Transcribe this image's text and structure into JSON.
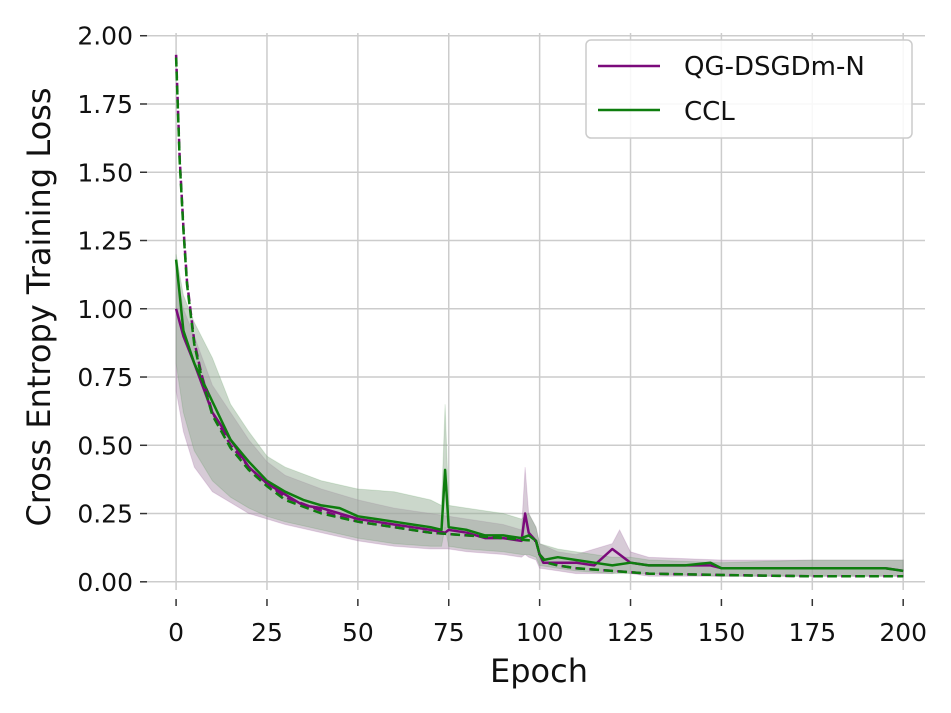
{
  "chart_data": {
    "type": "line",
    "xlabel": "Epoch",
    "ylabel": "Cross Entropy Training Loss",
    "xlim": [
      -8,
      206
    ],
    "ylim": [
      -0.03,
      2.01
    ],
    "xticks": [
      0,
      25,
      50,
      75,
      100,
      125,
      150,
      175,
      200
    ],
    "yticks": [
      0.0,
      0.25,
      0.5,
      0.75,
      1.0,
      1.25,
      1.5,
      1.75,
      2.0
    ],
    "xtick_labels": [
      "0",
      "25",
      "50",
      "75",
      "100",
      "125",
      "150",
      "175",
      "200"
    ],
    "ytick_labels": [
      "0.00",
      "0.25",
      "0.50",
      "0.75",
      "1.00",
      "1.25",
      "1.50",
      "1.75",
      "2.00"
    ],
    "grid": true,
    "legend_position": "top-right",
    "legend": [
      "QG-DSGDm-N",
      "CCL"
    ],
    "colors": {
      "QG-DSGDm-N": "#7b0a7b",
      "CCL": "#0e7d0e",
      "band_overlap": "#bdbdbd",
      "grid": "#cccccc"
    },
    "series": [
      {
        "name": "QG-DSGDm-N",
        "style": "solid",
        "x": [
          0,
          2,
          5,
          10,
          15,
          20,
          25,
          30,
          35,
          40,
          45,
          50,
          55,
          60,
          65,
          70,
          74,
          75,
          80,
          85,
          90,
          95,
          96,
          97,
          99,
          100,
          101,
          105,
          110,
          115,
          120,
          122,
          125,
          130,
          140,
          147,
          150,
          160,
          170,
          180,
          190,
          195,
          200
        ],
        "y": [
          1.0,
          0.9,
          0.8,
          0.62,
          0.52,
          0.42,
          0.36,
          0.32,
          0.28,
          0.27,
          0.25,
          0.23,
          0.22,
          0.21,
          0.2,
          0.19,
          0.18,
          0.19,
          0.18,
          0.16,
          0.16,
          0.15,
          0.25,
          0.18,
          0.15,
          0.1,
          0.07,
          0.07,
          0.07,
          0.06,
          0.12,
          0.1,
          0.07,
          0.06,
          0.06,
          0.06,
          0.05,
          0.05,
          0.05,
          0.05,
          0.05,
          0.05,
          0.04
        ]
      },
      {
        "name": "CCL",
        "style": "solid",
        "x": [
          0,
          2,
          5,
          10,
          15,
          20,
          25,
          30,
          35,
          40,
          45,
          50,
          55,
          60,
          65,
          70,
          73,
          74,
          75,
          80,
          85,
          90,
          95,
          97,
          99,
          100,
          101,
          105,
          110,
          115,
          120,
          125,
          130,
          140,
          147,
          150,
          160,
          170,
          180,
          190,
          195,
          200
        ],
        "y": [
          1.18,
          0.92,
          0.8,
          0.66,
          0.52,
          0.44,
          0.37,
          0.33,
          0.3,
          0.28,
          0.27,
          0.24,
          0.23,
          0.22,
          0.21,
          0.2,
          0.19,
          0.41,
          0.2,
          0.19,
          0.17,
          0.17,
          0.16,
          0.17,
          0.15,
          0.1,
          0.08,
          0.09,
          0.08,
          0.07,
          0.06,
          0.07,
          0.06,
          0.06,
          0.07,
          0.05,
          0.05,
          0.05,
          0.05,
          0.05,
          0.05,
          0.04
        ]
      },
      {
        "name": "QG-DSGDm-N",
        "style": "dashed",
        "x": [
          0,
          1,
          2,
          3,
          5,
          7,
          10,
          15,
          20,
          25,
          30,
          40,
          50,
          60,
          70,
          80,
          90,
          99,
          100,
          102,
          105,
          110,
          120,
          130,
          150,
          175,
          200
        ],
        "y": [
          1.93,
          1.55,
          1.3,
          1.1,
          0.88,
          0.76,
          0.62,
          0.5,
          0.42,
          0.36,
          0.31,
          0.26,
          0.22,
          0.2,
          0.18,
          0.17,
          0.16,
          0.15,
          0.1,
          0.07,
          0.06,
          0.05,
          0.04,
          0.03,
          0.025,
          0.02,
          0.02
        ]
      },
      {
        "name": "CCL",
        "style": "dashed",
        "x": [
          0,
          1,
          2,
          3,
          5,
          7,
          10,
          15,
          20,
          25,
          30,
          40,
          50,
          60,
          70,
          80,
          90,
          99,
          100,
          102,
          105,
          110,
          120,
          130,
          150,
          175,
          200
        ],
        "y": [
          1.92,
          1.54,
          1.29,
          1.09,
          0.87,
          0.75,
          0.61,
          0.49,
          0.41,
          0.35,
          0.3,
          0.25,
          0.22,
          0.2,
          0.18,
          0.17,
          0.16,
          0.15,
          0.1,
          0.07,
          0.06,
          0.05,
          0.04,
          0.03,
          0.025,
          0.02,
          0.02
        ]
      }
    ],
    "bands": [
      {
        "name": "QG-DSGDm-N",
        "x": [
          0,
          2,
          5,
          10,
          15,
          20,
          25,
          30,
          40,
          50,
          60,
          70,
          75,
          80,
          90,
          95,
          96,
          97,
          99,
          100,
          105,
          110,
          120,
          122,
          125,
          130,
          150,
          175,
          200
        ],
        "upper": [
          1.15,
          1.0,
          0.9,
          0.72,
          0.62,
          0.52,
          0.44,
          0.39,
          0.34,
          0.3,
          0.27,
          0.25,
          0.24,
          0.23,
          0.21,
          0.19,
          0.42,
          0.25,
          0.2,
          0.14,
          0.11,
          0.1,
          0.14,
          0.19,
          0.11,
          0.09,
          0.08,
          0.08,
          0.08
        ],
        "lower": [
          0.7,
          0.55,
          0.42,
          0.33,
          0.29,
          0.25,
          0.23,
          0.21,
          0.18,
          0.15,
          0.13,
          0.12,
          0.12,
          0.11,
          0.1,
          0.09,
          0.1,
          0.09,
          0.08,
          0.05,
          0.04,
          0.03,
          0.03,
          0.04,
          0.03,
          0.02,
          0.02,
          0.02,
          0.02
        ]
      },
      {
        "name": "CCL",
        "x": [
          0,
          2,
          5,
          10,
          15,
          20,
          25,
          30,
          40,
          50,
          60,
          70,
          73,
          74,
          75,
          80,
          90,
          95,
          97,
          99,
          100,
          105,
          110,
          120,
          125,
          130,
          150,
          175,
          200
        ],
        "upper": [
          1.2,
          1.05,
          0.95,
          0.82,
          0.65,
          0.55,
          0.46,
          0.42,
          0.37,
          0.34,
          0.33,
          0.3,
          0.28,
          0.65,
          0.28,
          0.27,
          0.25,
          0.23,
          0.25,
          0.2,
          0.14,
          0.12,
          0.11,
          0.09,
          0.09,
          0.08,
          0.07,
          0.08,
          0.08
        ],
        "lower": [
          0.8,
          0.62,
          0.48,
          0.37,
          0.31,
          0.27,
          0.24,
          0.22,
          0.19,
          0.16,
          0.14,
          0.13,
          0.13,
          0.2,
          0.13,
          0.12,
          0.11,
          0.1,
          0.1,
          0.09,
          0.06,
          0.05,
          0.04,
          0.03,
          0.03,
          0.03,
          0.02,
          0.02,
          0.02
        ]
      }
    ]
  }
}
